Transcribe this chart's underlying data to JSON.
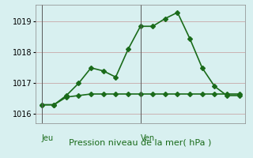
{
  "xlabel": "Pression niveau de la mer( hPa )",
  "background_color": "#d8f0f0",
  "grid_color": "#c8a8a8",
  "line_color": "#1a6b1a",
  "vline_color": "#5a5a5a",
  "ylim": [
    1015.7,
    1019.55
  ],
  "yticks": [
    1016,
    1017,
    1018,
    1019
  ],
  "day_labels": [
    "Jeu",
    "Ven"
  ],
  "day_positions": [
    0,
    8
  ],
  "line1_x": [
    0,
    1,
    2,
    3,
    4,
    5,
    6,
    7,
    8,
    9,
    10,
    11,
    12,
    13,
    14,
    15,
    16
  ],
  "line1_y": [
    1016.3,
    1016.3,
    1016.6,
    1017.0,
    1017.5,
    1017.4,
    1017.2,
    1018.1,
    1018.85,
    1018.85,
    1019.1,
    1019.3,
    1018.45,
    1017.5,
    1016.9,
    1016.6,
    1016.6
  ],
  "line2_x": [
    0,
    1,
    2,
    3,
    4,
    5,
    6,
    7,
    8,
    9,
    10,
    11,
    12,
    13,
    14,
    15,
    16
  ],
  "line2_y": [
    1016.3,
    1016.3,
    1016.55,
    1016.6,
    1016.65,
    1016.65,
    1016.65,
    1016.65,
    1016.65,
    1016.65,
    1016.65,
    1016.65,
    1016.65,
    1016.65,
    1016.65,
    1016.65,
    1016.65
  ],
  "marker": "D",
  "marker_size": 3,
  "line_width": 1.2,
  "ytick_fontsize": 7,
  "xlabel_fontsize": 8,
  "day_label_fontsize": 7
}
